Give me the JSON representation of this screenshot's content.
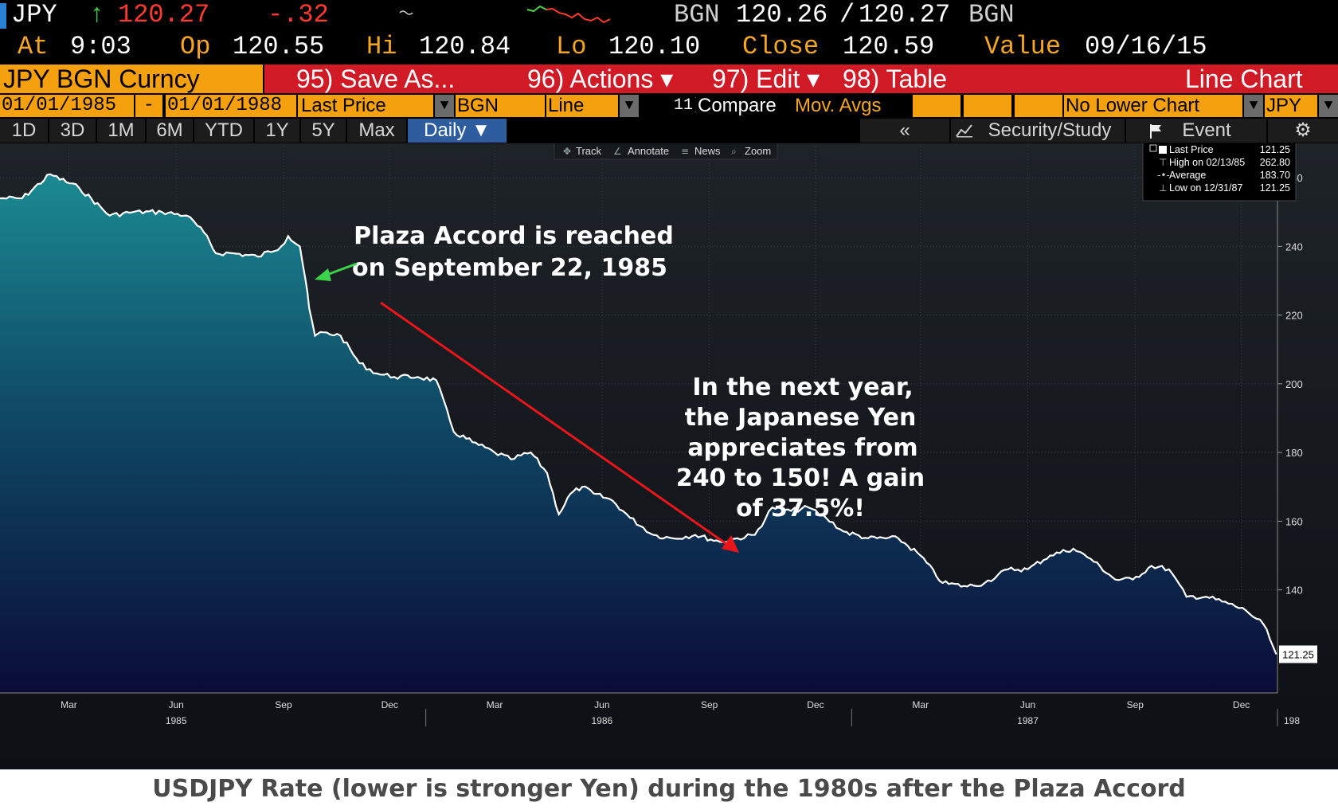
{
  "header": {
    "ticker": "JPY",
    "arrow": "↑",
    "last": "120.27",
    "change": "-.32",
    "quote_src_left": "BGN",
    "bid": "120.26",
    "slash": "/",
    "ask": "120.27",
    "quote_src_right": "BGN",
    "at_label": "At",
    "time": "9:03",
    "op_label": "Op",
    "open": "120.55",
    "hi_label": "Hi",
    "high": "120.84",
    "lo_label": "Lo",
    "low": "120.10",
    "close_label": "Close",
    "close": "120.59",
    "value_label": "Value",
    "value_date": "09/16/15"
  },
  "menu": {
    "security": "JPY BGN Curncy",
    "save_as": "95) Save As...",
    "actions": "96) Actions ▾",
    "edit": "97) Edit ▾",
    "table": "98) Table",
    "chart_type": "Line Chart"
  },
  "fields": {
    "start_date": "01/01/1985",
    "dash": "-",
    "end_date": "01/01/1988",
    "field": "Last Price",
    "source": "BGN",
    "style": "Line",
    "compare_num": "11)",
    "compare": "Compare",
    "mov_avgs": "Mov. Avgs",
    "lower_chart": "No Lower Chart",
    "currency": "JPY"
  },
  "periods": [
    {
      "label": "1D"
    },
    {
      "label": "3D"
    },
    {
      "label": "1M"
    },
    {
      "label": "6M"
    },
    {
      "label": "YTD"
    },
    {
      "label": "1Y"
    },
    {
      "label": "5Y"
    },
    {
      "label": "Max"
    },
    {
      "label": "Daily ▼"
    }
  ],
  "tools": {
    "collapse": "«",
    "security_study": "Security/Study",
    "event": "Event",
    "track": "Track",
    "annotate": "Annotate",
    "news": "News",
    "zoom": "Zoom"
  },
  "legend": {
    "rows": [
      {
        "label": "Last Price",
        "value": "121.25"
      },
      {
        "label": "High on 02/13/85",
        "value": "262.80"
      },
      {
        "label": "Average",
        "value": "183.70"
      },
      {
        "label": "Low on 12/31/87",
        "value": "121.25"
      }
    ]
  },
  "annotations": {
    "plaza": [
      "Plaza Accord is reached",
      "on September 22, 1985"
    ],
    "gain": [
      "In the next year,",
      "the Japanese Yen",
      "appreciates from",
      "240 to 150!  A gain",
      "of 37.5%!"
    ]
  },
  "caption": "USDJPY Rate (lower is stronger Yen) during the 1980s after the Plaza Accord",
  "colors": {
    "background": "#000000",
    "orange": "#f5a00f",
    "red_button": "#d01a26",
    "price_red": "#ff3b30",
    "arrow_green": "#3cd24a",
    "area_top": "#1b8a92",
    "area_bottom": "#0a0c36",
    "arrow_red": "#e8161b"
  },
  "chart_data": {
    "type": "area",
    "series": [
      {
        "name": "Last Price",
        "x": [
          "1985-01-01",
          "1985-01-20",
          "1985-02-13",
          "1985-03-10",
          "1985-04-05",
          "1985-04-25",
          "1985-05-20",
          "1985-06-10",
          "1985-06-25",
          "1985-07-05",
          "1985-07-20",
          "1985-08-10",
          "1985-08-30",
          "1985-09-05",
          "1985-09-15",
          "1985-09-20",
          "1985-09-23",
          "1985-09-28",
          "1985-10-05",
          "1985-10-20",
          "1985-11-05",
          "1985-11-20",
          "1985-12-05",
          "1985-12-25",
          "1986-01-10",
          "1986-01-25",
          "1986-02-10",
          "1986-03-01",
          "1986-03-15",
          "1986-04-01",
          "1986-04-15",
          "1986-04-25",
          "1986-05-05",
          "1986-05-15",
          "1986-05-25",
          "1986-06-10",
          "1986-06-25",
          "1986-07-15",
          "1986-08-01",
          "1986-08-20",
          "1986-09-10",
          "1986-09-25",
          "1986-10-10",
          "1986-10-25",
          "1986-11-10",
          "1986-11-25",
          "1986-12-10",
          "1986-12-25",
          "1987-01-15",
          "1987-02-10",
          "1987-03-01",
          "1987-03-20",
          "1987-04-10",
          "1987-04-25",
          "1987-05-15",
          "1987-06-01",
          "1987-06-20",
          "1987-07-10",
          "1987-07-25",
          "1987-08-15",
          "1987-08-30",
          "1987-09-15",
          "1987-09-30",
          "1987-10-15",
          "1987-11-01",
          "1987-11-20",
          "1987-12-05",
          "1987-12-20",
          "1987-12-31"
        ],
        "values": [
          254,
          254,
          261,
          257,
          249,
          250,
          250,
          249,
          244,
          238,
          238,
          237,
          240,
          243,
          240,
          230,
          222,
          214,
          215,
          214,
          206,
          203,
          202,
          202,
          201,
          186,
          183,
          180,
          178,
          180,
          174,
          162,
          168,
          170,
          168,
          166,
          161,
          156,
          155,
          156,
          154,
          155,
          156,
          164,
          163,
          164,
          161,
          157,
          155,
          155,
          150,
          142,
          141,
          142,
          146,
          146,
          150,
          152,
          149,
          143,
          143,
          147,
          146,
          138,
          138,
          136,
          134,
          130,
          121.25
        ]
      }
    ],
    "ylim": [
      110,
      270
    ],
    "yticks": [
      140,
      160,
      180,
      200,
      220,
      240,
      260
    ],
    "xticks": [
      {
        "date": "1985-03-01",
        "label": "Mar"
      },
      {
        "date": "1985-06-01",
        "label": "Jun"
      },
      {
        "date": "1985-09-01",
        "label": "Sep"
      },
      {
        "date": "1985-12-01",
        "label": "Dec"
      },
      {
        "date": "1986-03-01",
        "label": "Mar"
      },
      {
        "date": "1986-06-01",
        "label": "Jun"
      },
      {
        "date": "1986-09-01",
        "label": "Sep"
      },
      {
        "date": "1986-12-01",
        "label": "Dec"
      },
      {
        "date": "1987-03-01",
        "label": "Mar"
      },
      {
        "date": "1987-06-01",
        "label": "Jun"
      },
      {
        "date": "1987-09-01",
        "label": "Sep"
      },
      {
        "date": "1987-12-01",
        "label": "Dec"
      }
    ],
    "year_labels": [
      {
        "date": "1985-06-01",
        "label": "1985"
      },
      {
        "date": "1986-06-01",
        "label": "1986"
      },
      {
        "date": "1987-06-01",
        "label": "1987"
      },
      {
        "date": "1988-01-01",
        "label": "198"
      }
    ],
    "last_value_label": "121.25",
    "grid": true,
    "legend_position": "top-right"
  }
}
